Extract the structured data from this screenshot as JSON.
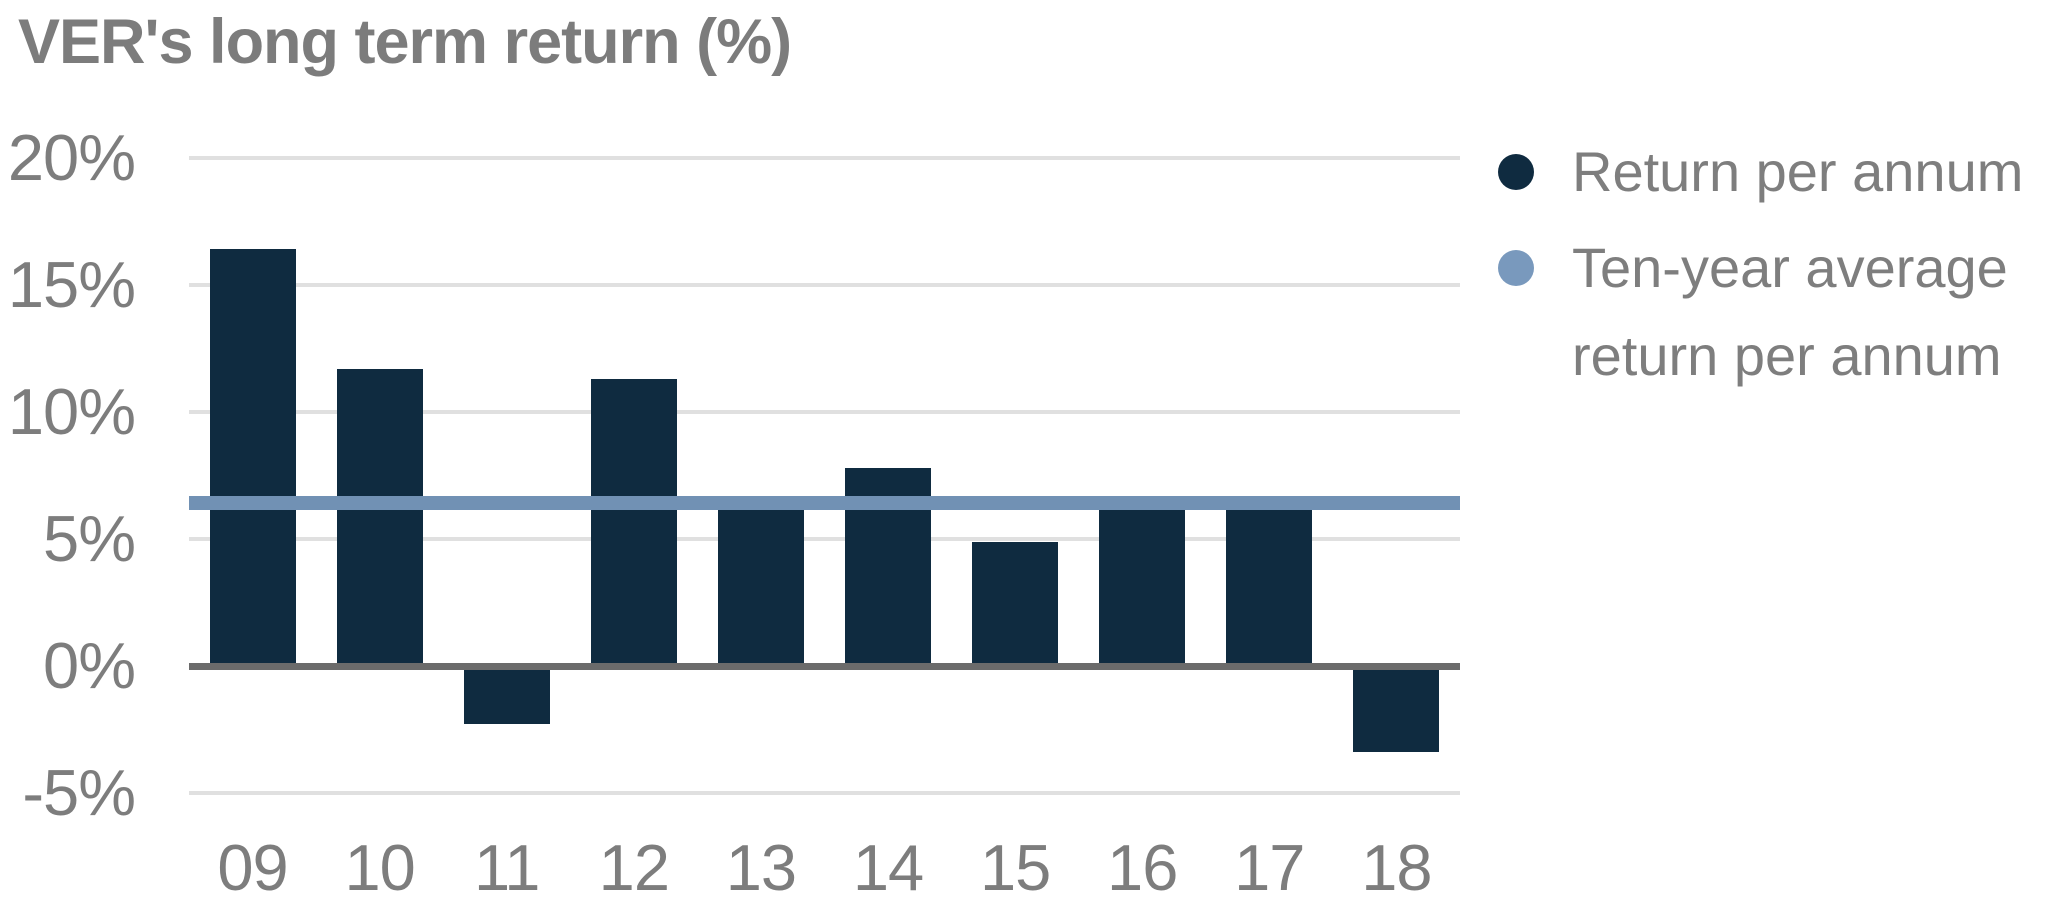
{
  "title": "VER's long term return (%)",
  "legend": {
    "item1_label": "Return per annum",
    "item2_label_line1": "Ten-year average",
    "item2_label_line2": "return per annum"
  },
  "colors": {
    "bar": "#0f2b40",
    "average_line": "#7191b4",
    "legend_dot_dark": "#0f2b40",
    "legend_dot_light": "#7999bd",
    "gridline": "#e0e0e0",
    "zero_axis": "#6b6b6b",
    "text_gray": "#7d7d7d"
  },
  "chart_data": {
    "type": "bar",
    "title": "VER's long term return (%)",
    "categories": [
      "09",
      "10",
      "11",
      "12",
      "13",
      "14",
      "15",
      "16",
      "17",
      "18"
    ],
    "series": [
      {
        "name": "Return per annum",
        "type": "bar",
        "color": "#0f2b40",
        "values": [
          16.4,
          11.7,
          -2.3,
          11.3,
          6.4,
          7.8,
          4.9,
          6.7,
          6.6,
          -3.4
        ]
      },
      {
        "name": "Ten-year average return per annum",
        "type": "horizontal-line",
        "color": "#7191b4",
        "value": 6.4
      }
    ],
    "xlabel": "",
    "ylabel": "",
    "ylim": [
      -5,
      20
    ],
    "y_ticks": [
      {
        "value": 20,
        "label": "20%"
      },
      {
        "value": 15,
        "label": "15%"
      },
      {
        "value": 10,
        "label": "10%"
      },
      {
        "value": 5,
        "label": "5%"
      },
      {
        "value": 0,
        "label": "0%"
      },
      {
        "value": -5,
        "label": "-5%"
      }
    ],
    "grid": true,
    "legend_position": "right"
  }
}
